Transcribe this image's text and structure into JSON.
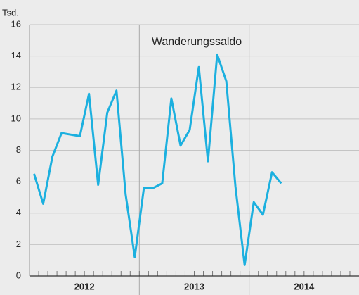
{
  "chart_data": {
    "type": "line",
    "y_unit_label": "Tsd.",
    "annotation": "Wanderungssaldo",
    "categories": [
      null,
      null,
      null,
      null,
      null,
      null,
      null,
      null,
      null,
      null,
      null,
      null,
      null,
      null,
      null,
      null,
      null,
      null,
      null,
      null,
      null,
      null,
      null,
      null,
      null,
      null,
      null,
      null,
      null,
      null,
      null,
      null,
      null,
      null,
      null,
      null
    ],
    "year_labels": [
      "2012",
      "2013",
      "2014"
    ],
    "months_per_year": 12,
    "series": [
      {
        "name": "Wanderungssaldo",
        "color": "#1cb0df",
        "values": [
          6.5,
          4.6,
          7.6,
          9.1,
          9.0,
          8.9,
          11.6,
          5.8,
          10.4,
          11.8,
          5.2,
          1.2,
          5.6,
          5.6,
          5.9,
          11.3,
          8.3,
          9.3,
          13.3,
          7.3,
          14.1,
          12.4,
          5.7,
          0.7,
          4.7,
          3.9,
          6.6,
          5.9,
          null,
          null,
          null,
          null,
          null,
          null,
          null,
          null
        ]
      }
    ],
    "ylim": [
      0,
      16
    ],
    "yticks": [
      0,
      2,
      4,
      6,
      8,
      10,
      12,
      14,
      16
    ],
    "grid": true
  }
}
